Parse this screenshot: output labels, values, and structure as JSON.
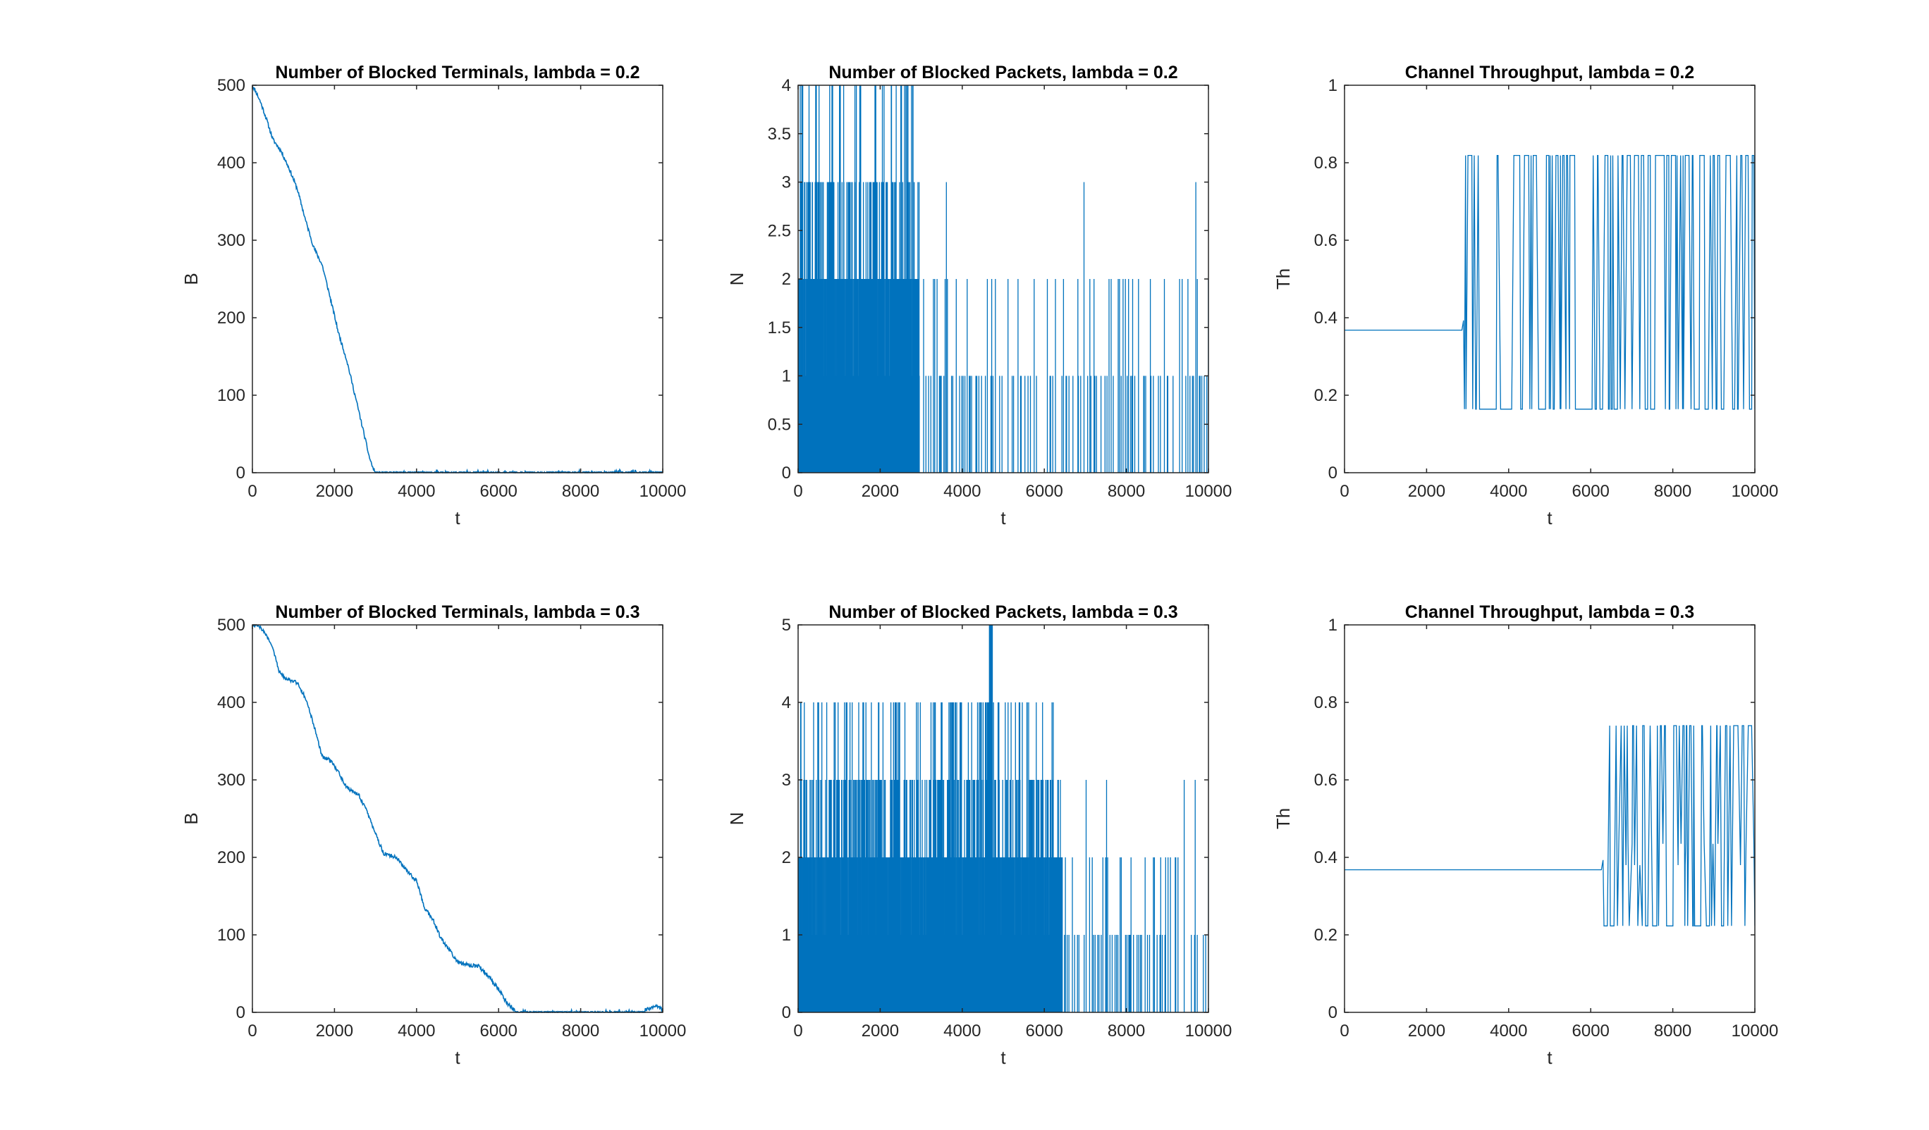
{
  "chart_data": [
    {
      "type": "line",
      "title": "Number of Blocked Terminals, lambda = 0.2",
      "xlabel": "t",
      "ylabel": "B",
      "xlim": [
        0,
        10000
      ],
      "ylim": [
        0,
        500
      ],
      "xticks": [
        0,
        2000,
        4000,
        6000,
        8000,
        10000
      ],
      "yticks": [
        0,
        100,
        200,
        300,
        400,
        500
      ],
      "yticklabels": [
        "0",
        "100",
        "200",
        "300",
        "400",
        "500"
      ],
      "series": [
        {
          "points": [
            [
              0,
              500
            ],
            [
              100,
              490
            ],
            [
              200,
              478
            ],
            [
              350,
              455
            ],
            [
              500,
              430
            ],
            [
              700,
              415
            ],
            [
              900,
              392
            ],
            [
              1100,
              365
            ],
            [
              1300,
              325
            ],
            [
              1500,
              290
            ],
            [
              1700,
              268
            ],
            [
              1900,
              225
            ],
            [
              2100,
              180
            ],
            [
              2300,
              145
            ],
            [
              2500,
              100
            ],
            [
              2700,
              55
            ],
            [
              2850,
              20
            ],
            [
              2950,
              4
            ],
            [
              3050,
              0
            ],
            [
              4000,
              1
            ],
            [
              5000,
              1
            ],
            [
              6000,
              1
            ],
            [
              7000,
              1
            ],
            [
              8000,
              1
            ],
            [
              9000,
              1
            ],
            [
              10000,
              1
            ]
          ]
        }
      ],
      "grid": false,
      "color": "#0072BD"
    },
    {
      "type": "line",
      "title": "Number of Blocked Packets, lambda = 0.2",
      "xlabel": "t",
      "ylabel": "N",
      "xlim": [
        0,
        10000
      ],
      "ylim": [
        0,
        4
      ],
      "xticks": [
        0,
        2000,
        4000,
        6000,
        8000,
        10000
      ],
      "yticks": [
        0,
        0.5,
        1,
        1.5,
        2,
        2.5,
        3,
        3.5,
        4
      ],
      "yticklabels": [
        "0",
        "0.5",
        "1",
        "1.5",
        "2",
        "2.5",
        "3",
        "3.5",
        "4"
      ],
      "series": [
        {
          "pattern": "integer spikes between 0 and 4 up to t≈2950; after that mostly 0–2 with occasional spikes to 3"
        }
      ],
      "grid": false,
      "color": "#0072BD"
    },
    {
      "type": "line",
      "title": "Channel Throughput, lambda = 0.2",
      "xlabel": "t",
      "ylabel": "Th",
      "xlim": [
        0,
        10000
      ],
      "ylim": [
        0,
        1
      ],
      "xticks": [
        0,
        2000,
        4000,
        6000,
        8000,
        10000
      ],
      "yticks": [
        0,
        0.2,
        0.4,
        0.6,
        0.8,
        1
      ],
      "yticklabels": [
        "0",
        "0.2",
        "0.4",
        "0.6",
        "0.8",
        "1"
      ],
      "series": [
        {
          "pattern": "flat at 0.368 until t≈2900, then switching between 0.164 and 0.819"
        }
      ],
      "levels": [
        0.368,
        0.164,
        0.819
      ],
      "switch_t": 2900,
      "grid": false,
      "color": "#0072BD"
    },
    {
      "type": "line",
      "title": "Number of Blocked Terminals, lambda = 0.3",
      "xlabel": "t",
      "ylabel": "B",
      "xlim": [
        0,
        10000
      ],
      "ylim": [
        0,
        500
      ],
      "xticks": [
        0,
        2000,
        4000,
        6000,
        8000,
        10000
      ],
      "yticks": [
        0,
        100,
        200,
        300,
        400,
        500
      ],
      "yticklabels": [
        "0",
        "100",
        "200",
        "300",
        "400",
        "500"
      ],
      "series": [
        {
          "points": [
            [
              0,
              500
            ],
            [
              150,
              500
            ],
            [
              300,
              490
            ],
            [
              500,
              470
            ],
            [
              650,
              440
            ],
            [
              800,
              432
            ],
            [
              1100,
              425
            ],
            [
              1300,
              405
            ],
            [
              1500,
              370
            ],
            [
              1700,
              330
            ],
            [
              1900,
              325
            ],
            [
              2100,
              310
            ],
            [
              2300,
              290
            ],
            [
              2600,
              280
            ],
            [
              2800,
              258
            ],
            [
              3000,
              230
            ],
            [
              3200,
              205
            ],
            [
              3500,
              200
            ],
            [
              3800,
              180
            ],
            [
              4000,
              170
            ],
            [
              4200,
              135
            ],
            [
              4400,
              120
            ],
            [
              4600,
              95
            ],
            [
              4800,
              80
            ],
            [
              5000,
              65
            ],
            [
              5300,
              60
            ],
            [
              5500,
              60
            ],
            [
              5700,
              50
            ],
            [
              6000,
              30
            ],
            [
              6200,
              12
            ],
            [
              6400,
              3
            ],
            [
              6600,
              0
            ],
            [
              7500,
              2
            ],
            [
              8500,
              1
            ],
            [
              9500,
              2
            ],
            [
              9900,
              8
            ],
            [
              10000,
              3
            ]
          ]
        }
      ],
      "grid": false,
      "color": "#0072BD"
    },
    {
      "type": "line",
      "title": "Number of Blocked Packets, lambda = 0.3",
      "xlabel": "t",
      "ylabel": "N",
      "xlim": [
        0,
        10000
      ],
      "ylim": [
        0,
        5
      ],
      "xticks": [
        0,
        2000,
        4000,
        6000,
        8000,
        10000
      ],
      "yticks": [
        0,
        1,
        2,
        3,
        4,
        5
      ],
      "yticklabels": [
        "0",
        "1",
        "2",
        "3",
        "4",
        "5"
      ],
      "series": [
        {
          "pattern": "integer spikes between 0 and 4 (one spike to 5 near t≈4700) up to t≈6400; after that mostly 0–2 with occasional spikes to 3"
        }
      ],
      "grid": false,
      "color": "#0072BD"
    },
    {
      "type": "line",
      "title": "Channel Throughput, lambda = 0.3",
      "xlabel": "t",
      "ylabel": "Th",
      "xlim": [
        0,
        10000
      ],
      "ylim": [
        0,
        1
      ],
      "xticks": [
        0,
        2000,
        4000,
        6000,
        8000,
        10000
      ],
      "yticks": [
        0,
        0.2,
        0.4,
        0.6,
        0.8,
        1
      ],
      "yticklabels": [
        "0",
        "0.2",
        "0.4",
        "0.6",
        "0.8",
        "1"
      ],
      "series": [
        {
          "pattern": "flat at 0.368 until t≈6300, then switching between 0.223, 0.38, 0.435 and 0.74"
        }
      ],
      "levels": [
        0.368,
        0.223,
        0.74
      ],
      "switch_t": 6300,
      "grid": false,
      "color": "#0072BD"
    }
  ]
}
